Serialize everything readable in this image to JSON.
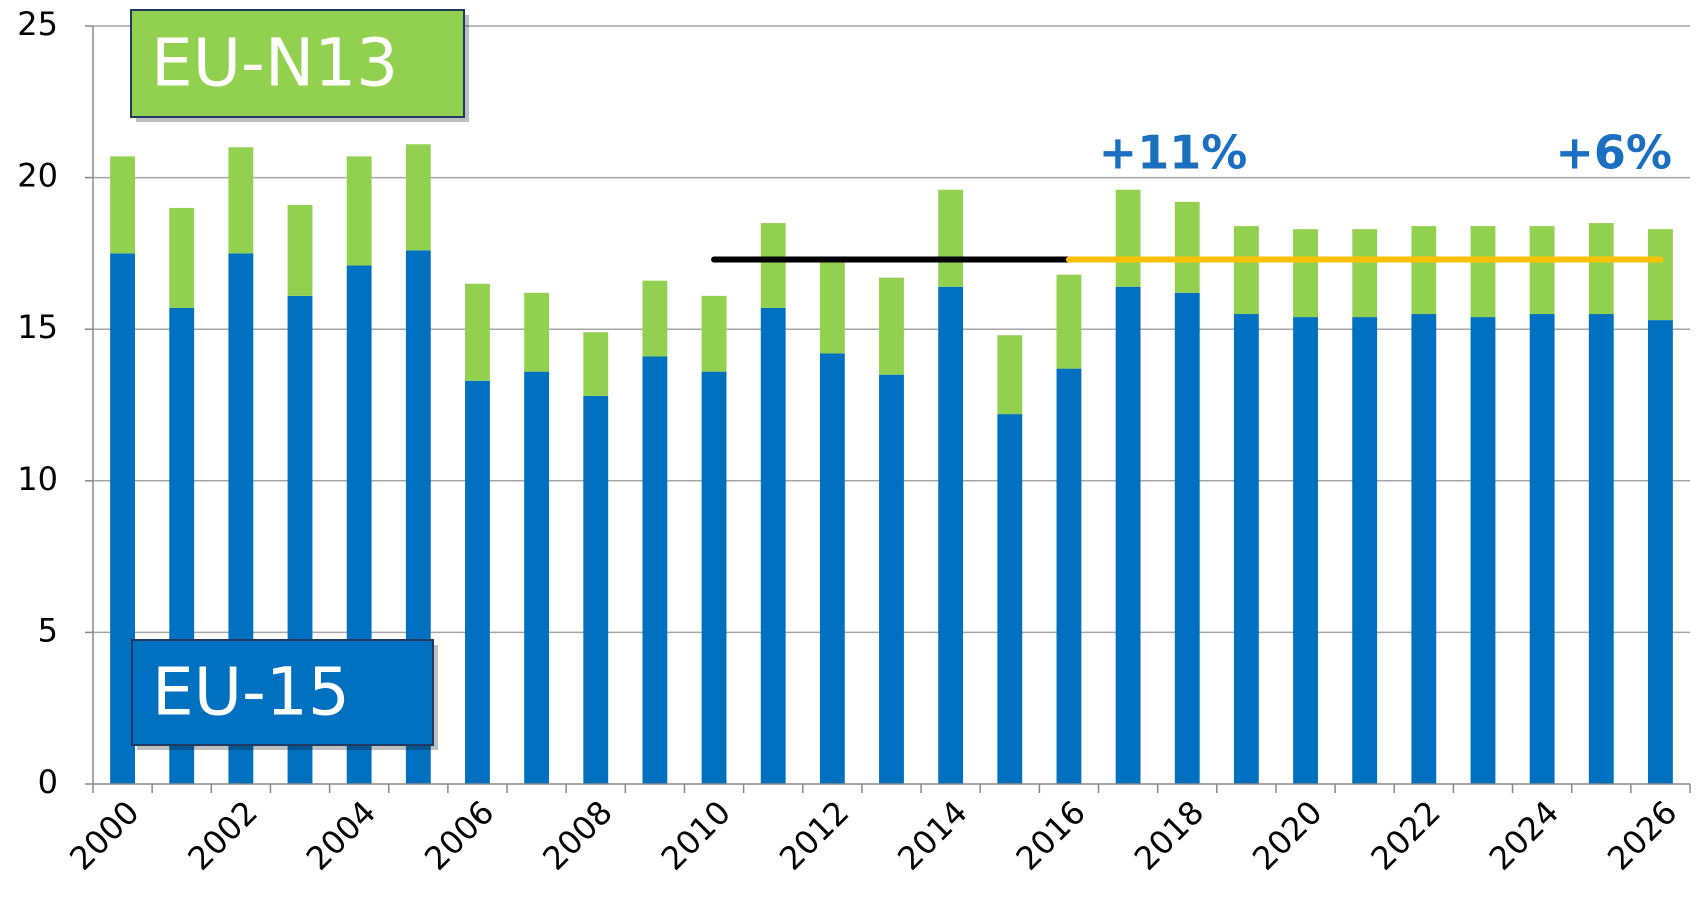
{
  "chart_data": {
    "type": "stacked_bar",
    "categories": [
      "2000",
      null,
      "2002",
      null,
      "2004",
      null,
      "2006",
      null,
      "2008",
      null,
      "2010",
      null,
      "2012",
      null,
      "2014",
      null,
      "2016",
      null,
      "2018",
      null,
      "2020",
      null,
      "2022",
      null,
      "2024",
      null,
      "2026"
    ],
    "series": [
      {
        "name": "EU-15",
        "color": "#0070c0",
        "values": [
          17.5,
          15.7,
          17.5,
          16.1,
          17.1,
          17.6,
          13.3,
          13.6,
          12.8,
          14.1,
          13.6,
          15.7,
          14.2,
          13.5,
          16.4,
          12.2,
          13.7,
          16.4,
          16.2,
          15.5,
          15.4,
          15.4,
          15.5,
          15.4,
          15.5,
          15.5,
          15.3
        ]
      },
      {
        "name": "EU-N13",
        "color": "#92d050",
        "values": [
          3.2,
          3.3,
          3.5,
          3.0,
          3.6,
          3.5,
          3.2,
          2.6,
          2.1,
          2.5,
          2.5,
          2.8,
          3.1,
          3.2,
          3.2,
          2.6,
          3.1,
          3.2,
          3.0,
          2.9,
          2.9,
          2.9,
          2.9,
          3.0,
          2.9,
          3.0,
          3.0
        ]
      }
    ],
    "reference_lines": [
      {
        "from": "2010",
        "to": "2016",
        "value": 17.3,
        "color": "#000000"
      },
      {
        "from": "2016",
        "to": "2026",
        "value": 17.3,
        "color": "#ffc000"
      }
    ],
    "annotations": [
      "+11%",
      "+6%"
    ],
    "ylim": [
      0,
      25
    ],
    "yticks": [
      0,
      5,
      10,
      15,
      20,
      25
    ],
    "grid": true
  }
}
